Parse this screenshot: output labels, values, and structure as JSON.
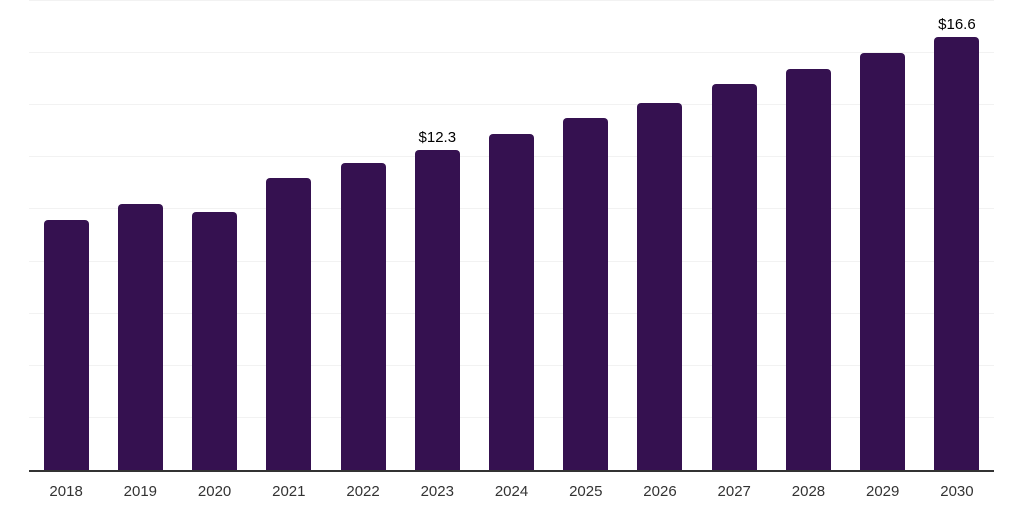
{
  "chart_data": {
    "type": "bar",
    "title": "",
    "xlabel": "",
    "ylabel": "",
    "categories": [
      "2018",
      "2019",
      "2020",
      "2021",
      "2022",
      "2023",
      "2024",
      "2025",
      "2026",
      "2027",
      "2028",
      "2029",
      "2030"
    ],
    "values": [
      9.6,
      10.2,
      9.9,
      11.2,
      11.8,
      12.3,
      12.9,
      13.5,
      14.1,
      14.8,
      15.4,
      16.0,
      16.6
    ],
    "point_labels": [
      "",
      "",
      "",
      "",
      "",
      "$12.3",
      "",
      "",
      "",
      "",
      "",
      "",
      "$16.6"
    ],
    "ylim": [
      0,
      18
    ],
    "gridline_step": 2,
    "grid": "horizontal",
    "legend": "none",
    "y_axis_labels_visible": false,
    "colors": {
      "bar": "#351150",
      "axis": "#333333",
      "gridline": "#f2f2f2",
      "tick_label": "#333333",
      "data_label": "#000000",
      "background": "#ffffff"
    }
  }
}
